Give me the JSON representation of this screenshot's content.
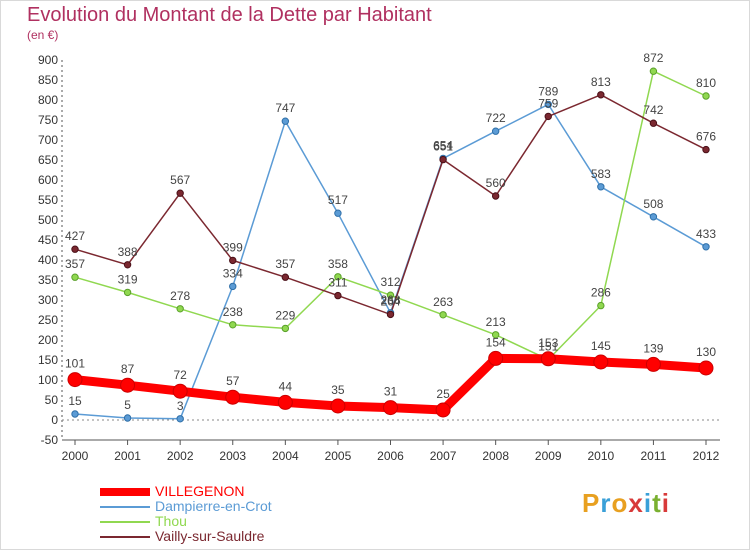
{
  "title": "Evolution du Montant de la Dette par Habitant",
  "subtitle": "(en €)",
  "logo": {
    "text": "Proxiti",
    "letters": [
      "P",
      "r",
      "o",
      "x",
      "i",
      "t",
      "i"
    ],
    "colors": [
      "#e8a020",
      "#3aa0d8",
      "#e8a020",
      "#d83a3a",
      "#3aa0d8",
      "#7ab030",
      "#d83a3a"
    ]
  },
  "chart_data": {
    "type": "line",
    "x": [
      "2000",
      "2001",
      "2002",
      "2003",
      "2004",
      "2005",
      "2006",
      "2007",
      "2008",
      "2009",
      "2010",
      "2011",
      "2012"
    ],
    "ylim": [
      -50,
      900
    ],
    "yticks": [
      -50,
      0,
      50,
      100,
      150,
      200,
      250,
      300,
      350,
      400,
      450,
      500,
      550,
      600,
      650,
      700,
      750,
      800,
      850,
      900
    ],
    "grid": false,
    "legend": "bottom-left",
    "series": [
      {
        "name": "VILLEGENON",
        "color": "#ff0000",
        "values": [
          101,
          87,
          72,
          57,
          44,
          35,
          31,
          25,
          154,
          153,
          145,
          139,
          130
        ]
      },
      {
        "name": "Dampierre-en-Crot",
        "color": "#5b9bd5",
        "values": [
          15,
          5,
          3,
          334,
          747,
          517,
          268,
          654,
          722,
          789,
          583,
          508,
          433
        ]
      },
      {
        "name": "Thou",
        "color": "#90d850",
        "values": [
          357,
          319,
          278,
          238,
          229,
          358,
          312,
          263,
          213,
          151,
          286,
          872,
          810
        ]
      },
      {
        "name": "Vailly-sur-Sauldre",
        "color": "#7b2830",
        "values": [
          427,
          388,
          567,
          399,
          357,
          311,
          264,
          651,
          560,
          759,
          813,
          742,
          676
        ]
      }
    ]
  }
}
